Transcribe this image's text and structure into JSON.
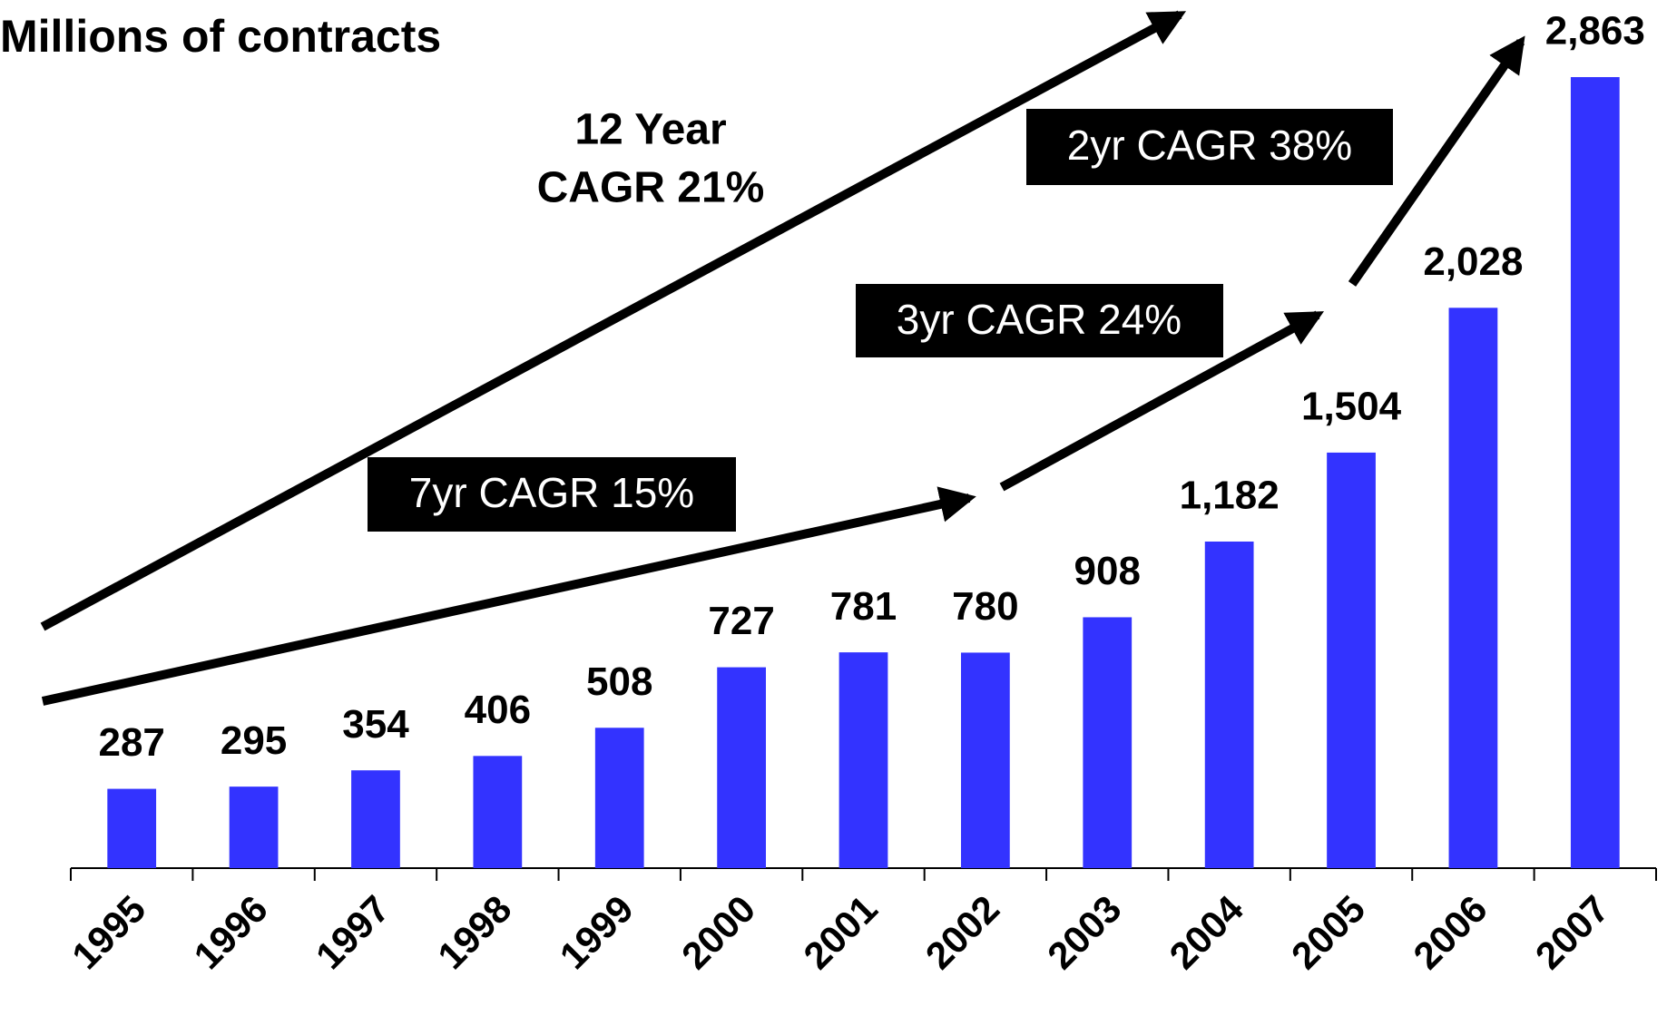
{
  "chart_data": {
    "type": "bar",
    "title": "Millions of contracts",
    "categories": [
      "1995",
      "1996",
      "1997",
      "1998",
      "1999",
      "2000",
      "2001",
      "2002",
      "2003",
      "2004",
      "2005",
      "2006",
      "2007"
    ],
    "values": [
      287,
      295,
      354,
      406,
      508,
      727,
      781,
      780,
      908,
      1182,
      1504,
      2028,
      2863
    ],
    "value_labels": [
      "287",
      "295",
      "354",
      "406",
      "508",
      "727",
      "781",
      "780",
      "908",
      "1,182",
      "1,504",
      "2,028",
      "2,863"
    ],
    "color": "#3333ff",
    "annotations": [
      "12 Year",
      "CAGR  21%",
      "7yr CAGR 15%",
      "3yr CAGR 24%",
      "2yr CAGR 38%"
    ]
  }
}
